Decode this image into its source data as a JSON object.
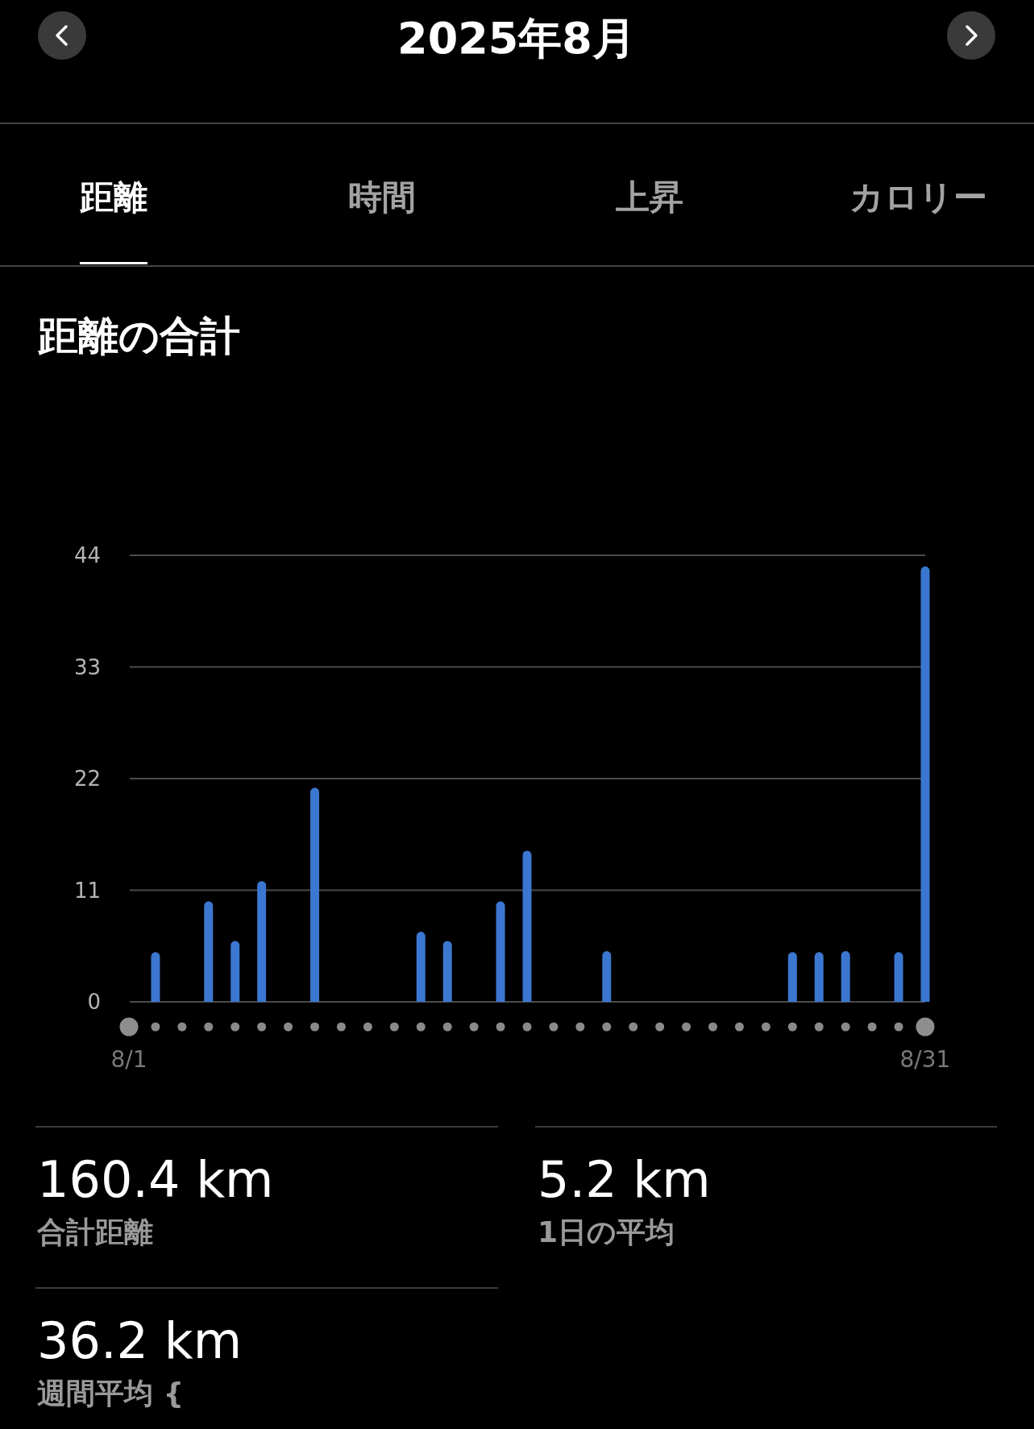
{
  "chart_data": {
    "type": "bar",
    "title": "2025年8月",
    "subtitle": "距離の合計",
    "categories": [
      "8/1",
      null,
      null,
      null,
      null,
      null,
      null,
      null,
      null,
      null,
      null,
      null,
      null,
      null,
      null,
      null,
      null,
      null,
      null,
      null,
      null,
      null,
      null,
      null,
      null,
      null,
      null,
      null,
      null,
      null,
      "8/31"
    ],
    "values": [
      0,
      4.9,
      0,
      9.9,
      6.0,
      11.9,
      0,
      21.1,
      0,
      0,
      0,
      6.9,
      6.0,
      0,
      9.9,
      14.9,
      0,
      0,
      5.0,
      0,
      0,
      0,
      0,
      0,
      0,
      4.9,
      4.9,
      5.0,
      0,
      4.9,
      42.9
    ],
    "color": "#3b77d0",
    "ylim": [
      0,
      44
    ],
    "yticks": [
      0,
      11,
      22,
      33,
      44
    ],
    "grid": "y",
    "annotations": [
      "距離",
      "時間",
      "上昇",
      "カロリー",
      "160.4 km",
      "合計距離",
      "5.2 km",
      "1日の平均",
      "36.2 km",
      "週間平均 {"
    ]
  }
}
